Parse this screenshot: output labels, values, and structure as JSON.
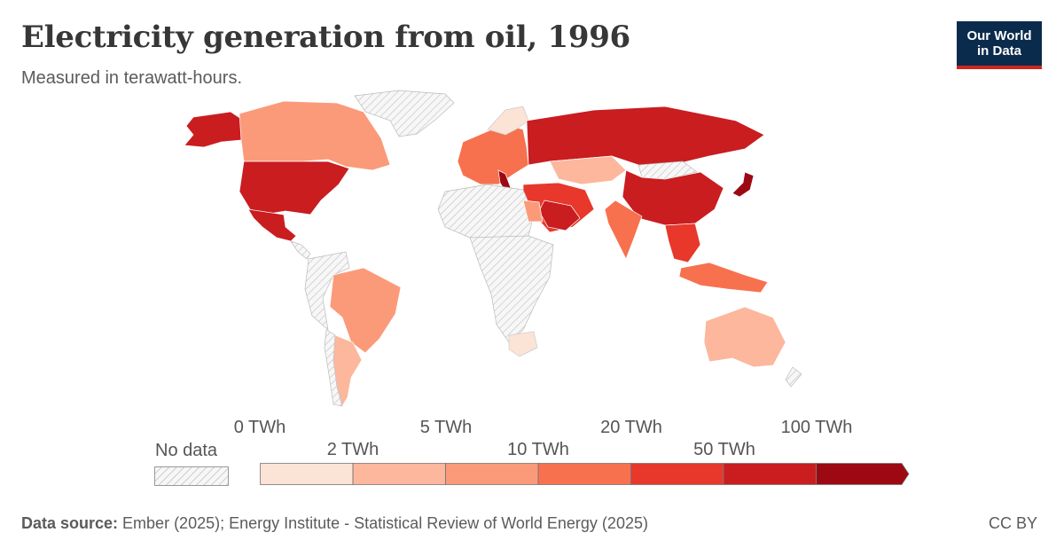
{
  "header": {
    "title": "Electricity generation from oil, 1996",
    "subtitle": "Measured in terawatt-hours."
  },
  "logo": {
    "line1": "Our World",
    "line2": "in Data"
  },
  "legend": {
    "no_data_label": "No data",
    "top_labels": [
      "0 TWh",
      "5 TWh",
      "20 TWh",
      "100 TWh"
    ],
    "bottom_labels": [
      "2 TWh",
      "10 TWh",
      "50 TWh"
    ],
    "colors": [
      "#fbe3d6",
      "#fcb79d",
      "#fb9a79",
      "#f7714f",
      "#e8372b",
      "#c91d20",
      "#9d0912"
    ]
  },
  "footer": {
    "source_label": "Data source:",
    "source_text": " Ember (2025); Energy Institute - Statistical Review of World Energy (2025)",
    "license": "CC BY"
  }
}
